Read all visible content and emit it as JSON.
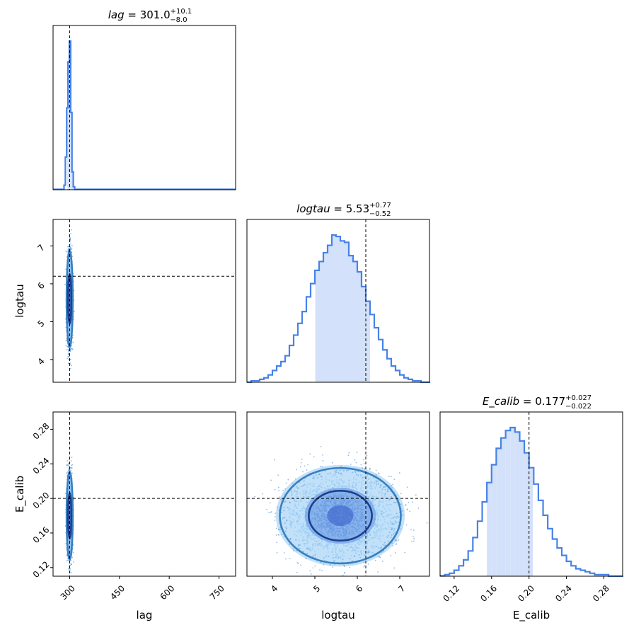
{
  "chart_data": [
    {
      "type": "histogram",
      "panel": "lag",
      "title": {
        "name": "lag",
        "value": "301.0",
        "plus": "+10.1",
        "minus": "−8.0"
      },
      "xlim": [
        250,
        800
      ],
      "truth": 300,
      "color": "#4682e8",
      "fill_color": "#d3e1fa",
      "fill_range": [
        293.0,
        311.1
      ],
      "bin_edges": [
        283,
        287,
        291,
        295,
        299,
        303,
        307,
        311,
        315
      ],
      "values": [
        0.03,
        0.22,
        0.55,
        0.86,
        1.0,
        0.52,
        0.12,
        0.02
      ]
    },
    {
      "type": "scatter-contour",
      "panel": "lag vs logtau",
      "x_var": "lag",
      "y_var": "logtau",
      "xlim": [
        250,
        800
      ],
      "ylim": [
        3.4,
        7.7
      ],
      "y_ticks": [
        "4",
        "5",
        "6",
        "7"
      ],
      "truth_x": 300,
      "truth_y": 6.2,
      "center": [
        300,
        5.6
      ],
      "spread": [
        4,
        0.55
      ]
    },
    {
      "type": "histogram",
      "panel": "logtau",
      "title": {
        "name": "logtau",
        "value": "5.53",
        "plus": "+0.77",
        "minus": "−0.52"
      },
      "xlim": [
        3.4,
        7.7
      ],
      "truth": 6.2,
      "color": "#4682e8",
      "fill_color": "#d3e1fa",
      "fill_range": [
        5.01,
        6.3
      ],
      "bin_edges": [
        3.4,
        3.5,
        3.6,
        3.7,
        3.8,
        3.9,
        4.0,
        4.1,
        4.2,
        4.3,
        4.4,
        4.5,
        4.6,
        4.7,
        4.8,
        4.9,
        5.0,
        5.1,
        5.2,
        5.3,
        5.4,
        5.5,
        5.6,
        5.7,
        5.8,
        5.9,
        6.0,
        6.1,
        6.2,
        6.3,
        6.4,
        6.5,
        6.6,
        6.7,
        6.8,
        6.9,
        7.0,
        7.1,
        7.2,
        7.3,
        7.4,
        7.5,
        7.6,
        7.7
      ],
      "values": [
        0.0,
        0.01,
        0.01,
        0.02,
        0.03,
        0.05,
        0.08,
        0.11,
        0.14,
        0.18,
        0.25,
        0.32,
        0.4,
        0.48,
        0.58,
        0.67,
        0.76,
        0.82,
        0.88,
        0.93,
        1.0,
        0.99,
        0.96,
        0.95,
        0.86,
        0.82,
        0.75,
        0.65,
        0.55,
        0.46,
        0.37,
        0.29,
        0.22,
        0.16,
        0.11,
        0.08,
        0.05,
        0.03,
        0.02,
        0.01,
        0.01,
        0.0,
        0.0
      ]
    },
    {
      "type": "scatter-contour",
      "panel": "lag vs E_calib",
      "x_var": "lag",
      "y_var": "E_calib",
      "xlabel": "lag",
      "ylabel": "E_calib",
      "xlim": [
        250,
        800
      ],
      "ylim": [
        0.11,
        0.3
      ],
      "x_ticks": [
        "300",
        "450",
        "600",
        "750"
      ],
      "y_ticks": [
        "0.12",
        "0.16",
        "0.20",
        "0.24",
        "0.28"
      ],
      "truth_x": 300,
      "truth_y": 0.2,
      "center": [
        300,
        0.18
      ],
      "spread": [
        4,
        0.022
      ]
    },
    {
      "type": "scatter-contour",
      "panel": "logtau vs E_calib",
      "x_var": "logtau",
      "y_var": "E_calib",
      "xlabel": "logtau",
      "xlim": [
        3.4,
        7.7
      ],
      "ylim": [
        0.11,
        0.3
      ],
      "x_ticks": [
        "4",
        "5",
        "6",
        "7"
      ],
      "truth_x": 6.2,
      "truth_y": 0.2,
      "center": [
        5.6,
        0.18
      ],
      "spread": [
        0.62,
        0.024
      ]
    },
    {
      "type": "histogram",
      "panel": "E_calib",
      "title": {
        "name": "E_calib",
        "value": "0.177",
        "plus": "+0.027",
        "minus": "−0.022"
      },
      "xlabel": "E_calib",
      "xlim": [
        0.105,
        0.3
      ],
      "x_ticks": [
        "0.12",
        "0.16",
        "0.20",
        "0.24",
        "0.28"
      ],
      "truth": 0.2,
      "color": "#4682e8",
      "fill_color": "#d3e1fa",
      "fill_range": [
        0.155,
        0.204
      ],
      "bin_edges": [
        0.11,
        0.115,
        0.12,
        0.125,
        0.13,
        0.135,
        0.14,
        0.145,
        0.15,
        0.155,
        0.16,
        0.165,
        0.17,
        0.175,
        0.18,
        0.185,
        0.19,
        0.195,
        0.2,
        0.205,
        0.21,
        0.215,
        0.22,
        0.225,
        0.23,
        0.235,
        0.24,
        0.245,
        0.25,
        0.255,
        0.26,
        0.265,
        0.27,
        0.275,
        0.28,
        0.285,
        0.29,
        0.295,
        0.3
      ],
      "values": [
        0.01,
        0.02,
        0.04,
        0.07,
        0.11,
        0.17,
        0.26,
        0.37,
        0.5,
        0.63,
        0.75,
        0.86,
        0.93,
        0.98,
        1.0,
        0.97,
        0.91,
        0.83,
        0.73,
        0.62,
        0.51,
        0.41,
        0.32,
        0.25,
        0.19,
        0.14,
        0.1,
        0.07,
        0.05,
        0.04,
        0.03,
        0.02,
        0.01,
        0.01,
        0.01,
        0.0,
        0.0,
        0.0
      ]
    }
  ]
}
